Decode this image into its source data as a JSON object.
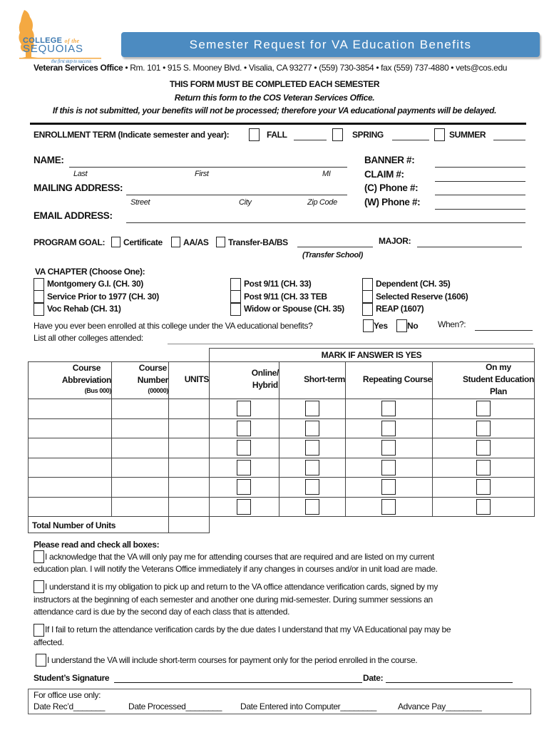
{
  "logo": {
    "line1": "COLLEGE",
    "of_the": "of the",
    "line2": "SEQUOIAS",
    "tagline": "the first step to success",
    "colors": {
      "tree": "#f4a942",
      "text": "#3b78b0"
    }
  },
  "header": {
    "title": "Semester Request for VA Education Benefits",
    "banner_color": "#4c8bc1",
    "office_name": "Veteran Services Office",
    "office_details": " • Rm. 101 • 915 S. Mooney Blvd. • Visalia, CA 93277 • (559) 730-3854 • fax (559) 737-4880 •  vets@cos.edu",
    "notice1": "THIS FORM MUST BE COMPLETED EACH SEMESTER",
    "notice2": "Return this form to the COS Veteran Services Office.",
    "notice3": "If this is not submitted, your benefits will not be processed; therefore your VA educational payments will be delayed."
  },
  "enrollment": {
    "label": "ENROLLMENT TERM (Indicate semester and year):",
    "options": [
      "FALL",
      "SPRING",
      "SUMMER"
    ]
  },
  "personal": {
    "name_label": "NAME:",
    "name_sub": [
      "Last",
      "First",
      "MI"
    ],
    "mailing_label": "MAILING ADDRESS:",
    "mailing_sub": [
      "Street",
      "City",
      "Zip Code"
    ],
    "email_label": "EMAIL ADDRESS:",
    "right_fields": [
      "BANNER #:",
      "CLAIM #:",
      "(C) Phone #:",
      "(W) Phone #:"
    ]
  },
  "program": {
    "label": "PROGRAM GOAL:",
    "options": [
      "Certificate",
      "AA/AS",
      "Transfer-BA/BS"
    ],
    "transfer_school": "(Transfer School)",
    "major_label": "MAJOR:"
  },
  "va_chapter": {
    "label": "VA CHAPTER (Choose One):",
    "options": [
      [
        "Montgomery G.I. (CH. 30)",
        "Service Prior to 1977 (CH. 30)",
        "Voc Rehab (CH. 31)"
      ],
      [
        "Post 9/11 (CH. 33)",
        "Post 9/11 (CH. 33 TEB",
        "Widow or Spouse (CH. 35)"
      ],
      [
        "Dependent (CH. 35)",
        "Selected Reserve (1606)",
        "REAP (1607)"
      ]
    ]
  },
  "history": {
    "question": "Have you ever been enrolled at this college under the VA educational benefits?",
    "yes": "Yes",
    "no": "No",
    "when": "When?:",
    "colleges": "List all other colleges attended:"
  },
  "courses": {
    "mark_header": "MARK IF ANSWER IS YES",
    "columns": [
      {
        "title": "Course\nAbbreviation",
        "sub": "(Bus 000)"
      },
      {
        "title": "Course\nNumber",
        "sub": "(00000)"
      },
      {
        "title": "UNITS",
        "sub": ""
      },
      {
        "title": "Online/\nHybrid",
        "sub": ""
      },
      {
        "title": "Short-term",
        "sub": ""
      },
      {
        "title": "Repeating Course",
        "sub": ""
      },
      {
        "title": "On my\nStudent  Education\nPlan",
        "sub": ""
      }
    ],
    "row_count": 6,
    "total_label": "Total Number of Units"
  },
  "acknowledgements": {
    "label": "Please read and check all boxes:",
    "items": [
      [
        "I acknowledge that the VA will only pay me for attending courses that are required and are listed on my current",
        "education plan.  I will notify the Veterans Office immediately if any changes in courses and/or in unit load are made."
      ],
      [
        " I understand it is my obligation to pick up and return to the VA office attendance verification cards, signed by my",
        "instructors at the beginning of each semester and another one during mid-semester. During summer sessions an",
        "attendance card is due by the second day of each class that is attended."
      ],
      [
        " If I fail to return the attendance verification cards by the due dates I understand that my VA Educational pay may be",
        "affected."
      ],
      [
        " I understand the VA will include short-term courses for payment only for the period enrolled in the course."
      ]
    ]
  },
  "signature": {
    "label": "Student’s Signature",
    "date_label": "Date:"
  },
  "office_use": {
    "label": "For office use only:",
    "fields": [
      "Date Rec’d_______",
      "Date Processed________",
      "Date Entered into Computer________",
      "Advance Pay________"
    ]
  }
}
